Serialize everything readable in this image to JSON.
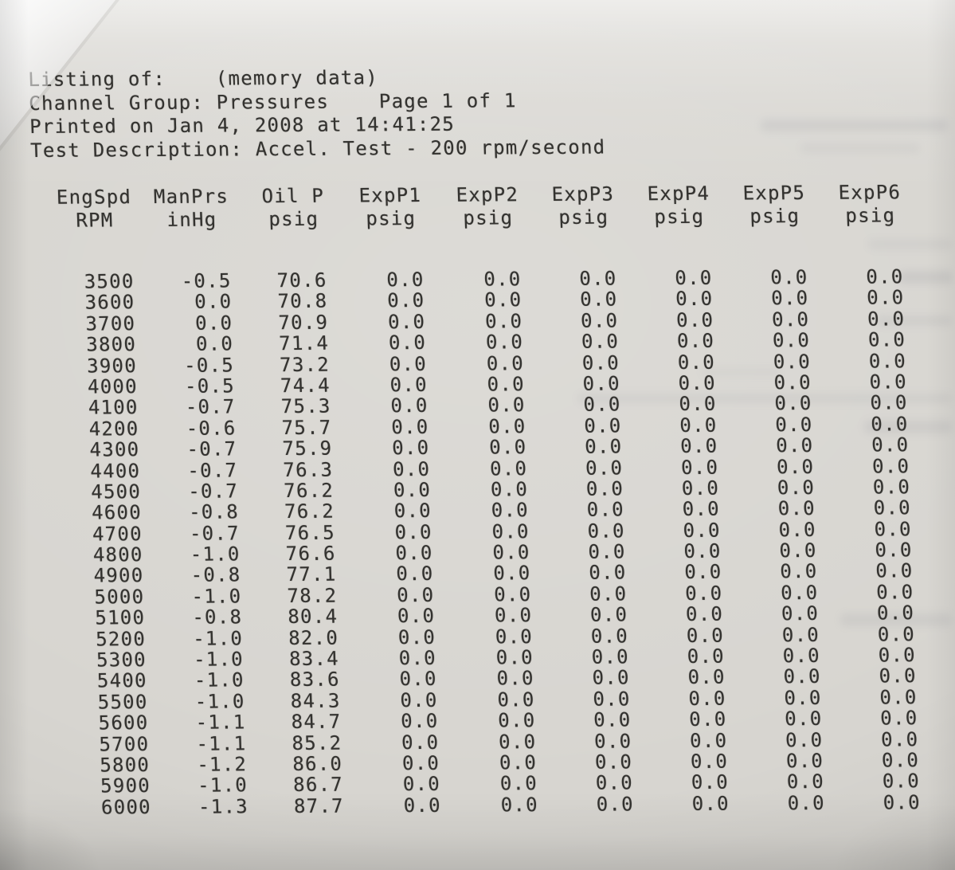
{
  "document": {
    "header_lines": [
      "Listing of:    (memory data)",
      "Channel Group: Pressures    Page 1 of 1",
      "Printed on Jan 4, 2008 at 14:41:25",
      "Test Description: Accel. Test - 200 rpm/second"
    ]
  },
  "table": {
    "columns": [
      {
        "name": "EngSpd",
        "unit": "RPM"
      },
      {
        "name": "ManPrs",
        "unit": "inHg"
      },
      {
        "name": "Oil P",
        "unit": "psig"
      },
      {
        "name": "ExpP1",
        "unit": "psig"
      },
      {
        "name": "ExpP2",
        "unit": "psig"
      },
      {
        "name": "ExpP3",
        "unit": "psig"
      },
      {
        "name": "ExpP4",
        "unit": "psig"
      },
      {
        "name": "ExpP5",
        "unit": "psig"
      },
      {
        "name": "ExpP6",
        "unit": "psig"
      }
    ],
    "rows": [
      [
        "3500",
        "-0.5",
        "70.6",
        "0.0",
        "0.0",
        "0.0",
        "0.0",
        "0.0",
        "0.0"
      ],
      [
        "3600",
        "0.0",
        "70.8",
        "0.0",
        "0.0",
        "0.0",
        "0.0",
        "0.0",
        "0.0"
      ],
      [
        "3700",
        "0.0",
        "70.9",
        "0.0",
        "0.0",
        "0.0",
        "0.0",
        "0.0",
        "0.0"
      ],
      [
        "3800",
        "0.0",
        "71.4",
        "0.0",
        "0.0",
        "0.0",
        "0.0",
        "0.0",
        "0.0"
      ],
      [
        "3900",
        "-0.5",
        "73.2",
        "0.0",
        "0.0",
        "0.0",
        "0.0",
        "0.0",
        "0.0"
      ],
      [
        "4000",
        "-0.5",
        "74.4",
        "0.0",
        "0.0",
        "0.0",
        "0.0",
        "0.0",
        "0.0"
      ],
      [
        "4100",
        "-0.7",
        "75.3",
        "0.0",
        "0.0",
        "0.0",
        "0.0",
        "0.0",
        "0.0"
      ],
      [
        "4200",
        "-0.6",
        "75.7",
        "0.0",
        "0.0",
        "0.0",
        "0.0",
        "0.0",
        "0.0"
      ],
      [
        "4300",
        "-0.7",
        "75.9",
        "0.0",
        "0.0",
        "0.0",
        "0.0",
        "0.0",
        "0.0"
      ],
      [
        "4400",
        "-0.7",
        "76.3",
        "0.0",
        "0.0",
        "0.0",
        "0.0",
        "0.0",
        "0.0"
      ],
      [
        "4500",
        "-0.7",
        "76.2",
        "0.0",
        "0.0",
        "0.0",
        "0.0",
        "0.0",
        "0.0"
      ],
      [
        "4600",
        "-0.8",
        "76.2",
        "0.0",
        "0.0",
        "0.0",
        "0.0",
        "0.0",
        "0.0"
      ],
      [
        "4700",
        "-0.7",
        "76.5",
        "0.0",
        "0.0",
        "0.0",
        "0.0",
        "0.0",
        "0.0"
      ],
      [
        "4800",
        "-1.0",
        "76.6",
        "0.0",
        "0.0",
        "0.0",
        "0.0",
        "0.0",
        "0.0"
      ],
      [
        "4900",
        "-0.8",
        "77.1",
        "0.0",
        "0.0",
        "0.0",
        "0.0",
        "0.0",
        "0.0"
      ],
      [
        "5000",
        "-1.0",
        "78.2",
        "0.0",
        "0.0",
        "0.0",
        "0.0",
        "0.0",
        "0.0"
      ],
      [
        "5100",
        "-0.8",
        "80.4",
        "0.0",
        "0.0",
        "0.0",
        "0.0",
        "0.0",
        "0.0"
      ],
      [
        "5200",
        "-1.0",
        "82.0",
        "0.0",
        "0.0",
        "0.0",
        "0.0",
        "0.0",
        "0.0"
      ],
      [
        "5300",
        "-1.0",
        "83.4",
        "0.0",
        "0.0",
        "0.0",
        "0.0",
        "0.0",
        "0.0"
      ],
      [
        "5400",
        "-1.0",
        "83.6",
        "0.0",
        "0.0",
        "0.0",
        "0.0",
        "0.0",
        "0.0"
      ],
      [
        "5500",
        "-1.0",
        "84.3",
        "0.0",
        "0.0",
        "0.0",
        "0.0",
        "0.0",
        "0.0"
      ],
      [
        "5600",
        "-1.1",
        "84.7",
        "0.0",
        "0.0",
        "0.0",
        "0.0",
        "0.0",
        "0.0"
      ],
      [
        "5700",
        "-1.1",
        "85.2",
        "0.0",
        "0.0",
        "0.0",
        "0.0",
        "0.0",
        "0.0"
      ],
      [
        "5800",
        "-1.2",
        "86.0",
        "0.0",
        "0.0",
        "0.0",
        "0.0",
        "0.0",
        "0.0"
      ],
      [
        "5900",
        "-1.0",
        "86.7",
        "0.0",
        "0.0",
        "0.0",
        "0.0",
        "0.0",
        "0.0"
      ],
      [
        "6000",
        "-1.3",
        "87.7",
        "0.0",
        "0.0",
        "0.0",
        "0.0",
        "0.0",
        "0.0"
      ]
    ]
  },
  "colors": {
    "paper": "#d7d5d0",
    "ink": "#33322f"
  }
}
